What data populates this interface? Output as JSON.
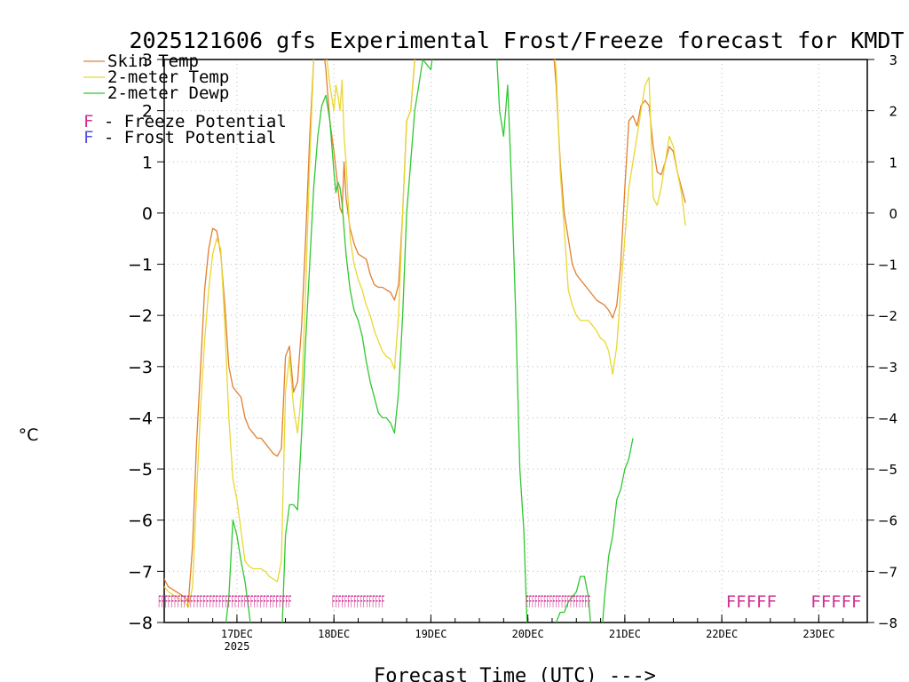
{
  "chart_data": {
    "type": "line",
    "title": "2025121606 gfs Experimental Frost/Freeze forecast for KMDT",
    "ylabel": "°C",
    "xlabel": "Forecast Time (UTC) --->",
    "ylim": [
      -8,
      3
    ],
    "xlim_hours": [
      0,
      174
    ],
    "y_ticks": [
      "-8",
      "-7",
      "-6",
      "-5",
      "-4",
      "-3",
      "-2",
      "-1",
      "0",
      "1",
      "2",
      "3"
    ],
    "x_ticks": [
      {
        "hour": 18,
        "label": "17DEC",
        "sub": "2025"
      },
      {
        "hour": 42,
        "label": "18DEC",
        "sub": ""
      },
      {
        "hour": 66,
        "label": "19DEC",
        "sub": ""
      },
      {
        "hour": 90,
        "label": "20DEC",
        "sub": ""
      },
      {
        "hour": 114,
        "label": "21DEC",
        "sub": ""
      },
      {
        "hour": 138,
        "label": "22DEC",
        "sub": ""
      },
      {
        "hour": 162,
        "label": "23DEC",
        "sub": ""
      }
    ],
    "grid": true,
    "legend": [
      {
        "label": "Skin Temp",
        "color": "#e08030"
      },
      {
        "label": "2-meter Temp",
        "color": "#e8d830"
      },
      {
        "label": "2-meter Dewp",
        "color": "#30c830"
      }
    ],
    "flag_legend": [
      {
        "symbol": "F",
        "label": " - Freeze Potential",
        "color": "#d03090"
      },
      {
        "symbol": "F",
        "label": " - Frost Potential",
        "color": "#5050e0"
      }
    ],
    "series": [
      {
        "name": "Skin Temp",
        "color": "#e08030",
        "points": [
          [
            -1,
            -7.0
          ],
          [
            1,
            -7.3
          ],
          [
            3,
            -7.4
          ],
          [
            5,
            -7.5
          ],
          [
            6,
            -7.6
          ],
          [
            7,
            -6.5
          ],
          [
            8,
            -4.5
          ],
          [
            9,
            -3
          ],
          [
            10,
            -1.5
          ],
          [
            11,
            -0.7
          ],
          [
            12,
            -0.3
          ],
          [
            13,
            -0.35
          ],
          [
            14,
            -0.8
          ],
          [
            15,
            -1.8
          ],
          [
            16,
            -3
          ],
          [
            17,
            -3.4
          ],
          [
            18,
            -3.5
          ],
          [
            19,
            -3.6
          ],
          [
            20,
            -4.0
          ],
          [
            21,
            -4.2
          ],
          [
            22,
            -4.3
          ],
          [
            23,
            -4.4
          ],
          [
            24,
            -4.4
          ],
          [
            25,
            -4.5
          ],
          [
            26,
            -4.6
          ],
          [
            27,
            -4.7
          ],
          [
            28,
            -4.75
          ],
          [
            29,
            -4.6
          ],
          [
            30,
            -2.8
          ],
          [
            31,
            -2.6
          ],
          [
            32,
            -3.5
          ],
          [
            33,
            -3.3
          ],
          [
            34,
            -2.2
          ],
          [
            35,
            -0.5
          ],
          [
            36,
            1.5
          ],
          [
            37,
            3
          ],
          [
            38,
            3.5
          ],
          [
            39,
            3.5
          ],
          [
            40,
            2.8
          ],
          [
            41,
            1.8
          ],
          [
            42,
            1.2
          ],
          [
            43,
            0.5
          ],
          [
            43.5,
            0.1
          ],
          [
            44,
            0.0
          ],
          [
            44.5,
            1.0
          ],
          [
            45,
            0.3
          ],
          [
            46,
            -0.3
          ],
          [
            47,
            -0.6
          ],
          [
            48,
            -0.8
          ],
          [
            49,
            -0.85
          ],
          [
            50,
            -0.9
          ],
          [
            51,
            -1.2
          ],
          [
            52,
            -1.4
          ],
          [
            53,
            -1.45
          ],
          [
            54,
            -1.45
          ],
          [
            55,
            -1.5
          ],
          [
            56,
            -1.55
          ],
          [
            57,
            -1.7
          ],
          [
            58,
            -1.4
          ],
          [
            59,
            0
          ],
          [
            60,
            1.8
          ],
          [
            61,
            2
          ],
          [
            62,
            3
          ],
          [
            63,
            3.5
          ],
          [
            96,
            3.5
          ],
          [
            97,
            2.5
          ],
          [
            98,
            1.0
          ],
          [
            99,
            0
          ],
          [
            100,
            -0.5
          ],
          [
            101,
            -1.0
          ],
          [
            102,
            -1.2
          ],
          [
            103,
            -1.3
          ],
          [
            104,
            -1.4
          ],
          [
            105,
            -1.5
          ],
          [
            106,
            -1.6
          ],
          [
            107,
            -1.7
          ],
          [
            108,
            -1.75
          ],
          [
            109,
            -1.8
          ],
          [
            110,
            -1.9
          ],
          [
            111,
            -2.05
          ],
          [
            112,
            -1.8
          ],
          [
            113,
            -1.0
          ],
          [
            114,
            0.5
          ],
          [
            115,
            1.8
          ],
          [
            116,
            1.9
          ],
          [
            117,
            1.7
          ],
          [
            118,
            2.1
          ],
          [
            119,
            2.2
          ],
          [
            120,
            2.1
          ],
          [
            121,
            1.3
          ],
          [
            122,
            0.8
          ],
          [
            123,
            0.75
          ],
          [
            124,
            1.0
          ],
          [
            125,
            1.3
          ],
          [
            126,
            1.2
          ],
          [
            127,
            0.8
          ],
          [
            128,
            0.5
          ],
          [
            129,
            0.2
          ]
        ]
      },
      {
        "name": "2-meter Temp",
        "color": "#e8d830",
        "points": [
          [
            -1,
            -7.2
          ],
          [
            1,
            -7.4
          ],
          [
            3,
            -7.5
          ],
          [
            5,
            -7.6
          ],
          [
            6,
            -7.7
          ],
          [
            7,
            -7.3
          ],
          [
            8,
            -5.5
          ],
          [
            9,
            -3.8
          ],
          [
            10,
            -2.5
          ],
          [
            11,
            -1.5
          ],
          [
            12,
            -0.8
          ],
          [
            13,
            -0.5
          ],
          [
            14,
            -0.7
          ],
          [
            15,
            -2.2
          ],
          [
            16,
            -4
          ],
          [
            17,
            -5.2
          ],
          [
            18,
            -5.6
          ],
          [
            19,
            -6.2
          ],
          [
            20,
            -6.8
          ],
          [
            21,
            -6.9
          ],
          [
            22,
            -6.95
          ],
          [
            23,
            -6.95
          ],
          [
            24,
            -6.95
          ],
          [
            25,
            -7.0
          ],
          [
            26,
            -7.1
          ],
          [
            27,
            -7.15
          ],
          [
            28,
            -7.2
          ],
          [
            29,
            -6.8
          ],
          [
            30,
            -3.5
          ],
          [
            31,
            -2.8
          ],
          [
            32,
            -3.8
          ],
          [
            33,
            -4.3
          ],
          [
            34,
            -3.5
          ],
          [
            35,
            -1.5
          ],
          [
            36,
            1.0
          ],
          [
            37,
            3
          ],
          [
            38,
            3.5
          ],
          [
            39,
            3.5
          ],
          [
            40,
            3.2
          ],
          [
            41,
            2.5
          ],
          [
            42,
            2.0
          ],
          [
            42.5,
            2.5
          ],
          [
            43,
            2.3
          ],
          [
            43.5,
            2.0
          ],
          [
            44,
            2.6
          ],
          [
            44.5,
            1.5
          ],
          [
            45,
            1.0
          ],
          [
            46,
            -0.5
          ],
          [
            47,
            -1.0
          ],
          [
            48,
            -1.3
          ],
          [
            49,
            -1.5
          ],
          [
            50,
            -1.8
          ],
          [
            51,
            -2.0
          ],
          [
            52,
            -2.3
          ],
          [
            53,
            -2.5
          ],
          [
            54,
            -2.7
          ],
          [
            55,
            -2.8
          ],
          [
            56,
            -2.85
          ],
          [
            57,
            -3.05
          ],
          [
            58,
            -2.0
          ],
          [
            59,
            0
          ],
          [
            60,
            1.8
          ],
          [
            61,
            2
          ],
          [
            62,
            3
          ],
          [
            63,
            3.5
          ],
          [
            96,
            3.5
          ],
          [
            97,
            2.8
          ],
          [
            98,
            0.8
          ],
          [
            99,
            -0.3
          ],
          [
            100,
            -1.5
          ],
          [
            101,
            -1.8
          ],
          [
            102,
            -2.0
          ],
          [
            103,
            -2.1
          ],
          [
            104,
            -2.1
          ],
          [
            105,
            -2.1
          ],
          [
            106,
            -2.2
          ],
          [
            107,
            -2.3
          ],
          [
            108,
            -2.45
          ],
          [
            109,
            -2.5
          ],
          [
            110,
            -2.7
          ],
          [
            111,
            -3.15
          ],
          [
            112,
            -2.6
          ],
          [
            113,
            -1.5
          ],
          [
            114,
            -0.5
          ],
          [
            115,
            0.5
          ],
          [
            116,
            1.0
          ],
          [
            117,
            1.5
          ],
          [
            118,
            2.0
          ],
          [
            119,
            2.5
          ],
          [
            120,
            2.65
          ],
          [
            121,
            0.3
          ],
          [
            122,
            0.15
          ],
          [
            123,
            0.5
          ],
          [
            124,
            1.0
          ],
          [
            125,
            1.5
          ],
          [
            126,
            1.3
          ],
          [
            127,
            0.8
          ],
          [
            128,
            0.4
          ],
          [
            129,
            -0.25
          ]
        ]
      },
      {
        "name": "2-meter Dewp",
        "color": "#30c830",
        "points": [
          [
            14,
            -8.5
          ],
          [
            15,
            -8.2
          ],
          [
            16,
            -7.5
          ],
          [
            17,
            -6.0
          ],
          [
            18,
            -6.3
          ],
          [
            19,
            -6.8
          ],
          [
            20,
            -7.2
          ],
          [
            21,
            -7.8
          ],
          [
            22,
            -8.5
          ],
          [
            29,
            -8.5
          ],
          [
            30,
            -6.3
          ],
          [
            31,
            -5.7
          ],
          [
            32,
            -5.7
          ],
          [
            33,
            -5.8
          ],
          [
            34,
            -4.3
          ],
          [
            35,
            -2.5
          ],
          [
            36,
            -1.0
          ],
          [
            37,
            0.5
          ],
          [
            38,
            1.5
          ],
          [
            39,
            2.1
          ],
          [
            40,
            2.3
          ],
          [
            41,
            1.8
          ],
          [
            42,
            0.8
          ],
          [
            42.5,
            0.4
          ],
          [
            43,
            0.6
          ],
          [
            43.5,
            0.5
          ],
          [
            44,
            0.2
          ],
          [
            45,
            -0.8
          ],
          [
            46,
            -1.5
          ],
          [
            47,
            -1.9
          ],
          [
            48,
            -2.1
          ],
          [
            49,
            -2.4
          ],
          [
            50,
            -2.9
          ],
          [
            51,
            -3.3
          ],
          [
            52,
            -3.6
          ],
          [
            53,
            -3.9
          ],
          [
            54,
            -4.0
          ],
          [
            55,
            -4.0
          ],
          [
            56,
            -4.1
          ],
          [
            57,
            -4.3
          ],
          [
            58,
            -3.5
          ],
          [
            59,
            -2.0
          ],
          [
            60,
            0
          ],
          [
            61,
            1.0
          ],
          [
            62,
            2.0
          ],
          [
            63,
            2.5
          ],
          [
            64,
            3.0
          ],
          [
            65,
            2.9
          ],
          [
            66,
            2.8
          ],
          [
            67,
            3.5
          ],
          [
            82,
            3.5
          ],
          [
            83,
            2.0
          ],
          [
            84,
            1.5
          ],
          [
            85,
            2.5
          ],
          [
            86,
            0.5
          ],
          [
            87,
            -2.0
          ],
          [
            88,
            -5.0
          ],
          [
            89,
            -6.2
          ],
          [
            90,
            -8.5
          ],
          [
            96,
            -8.5
          ],
          [
            97,
            -8.0
          ],
          [
            98,
            -7.8
          ],
          [
            99,
            -7.8
          ],
          [
            100,
            -7.6
          ],
          [
            101,
            -7.5
          ],
          [
            102,
            -7.4
          ],
          [
            103,
            -7.1
          ],
          [
            104,
            -7.1
          ],
          [
            105,
            -7.5
          ],
          [
            106,
            -8.5
          ],
          [
            108,
            -8.5
          ],
          [
            109,
            -7.5
          ],
          [
            110,
            -6.7
          ],
          [
            111,
            -6.3
          ],
          [
            112,
            -5.6
          ],
          [
            113,
            -5.4
          ],
          [
            114,
            -5.0
          ],
          [
            115,
            -4.8
          ],
          [
            116,
            -4.4
          ]
        ]
      }
    ],
    "flag_rows": [
      {
        "label": "FFFFFFFFFFFFFFFFFFFFFFFFFFFFFFFFFFFFFFFFFF",
        "hour": -1.5,
        "color": "#d03090",
        "compress": true,
        "width_hours": 33
      },
      {
        "label": "FFFFFFFFFFFFFFFFF",
        "hour": 41.5,
        "color": "#d03090",
        "compress": true,
        "width_hours": 13
      },
      {
        "label": "FFFFFFFFFFFFFFFFFFFFFF",
        "hour": 89.5,
        "color": "#d03090",
        "compress": true,
        "width_hours": 16
      },
      {
        "label": "FFFFF",
        "hour": 139,
        "color": "#d03090",
        "compress": false,
        "width_hours": 0
      },
      {
        "label": "FFFFF",
        "hour": 160,
        "color": "#d03090",
        "compress": false,
        "width_hours": 0
      }
    ]
  }
}
